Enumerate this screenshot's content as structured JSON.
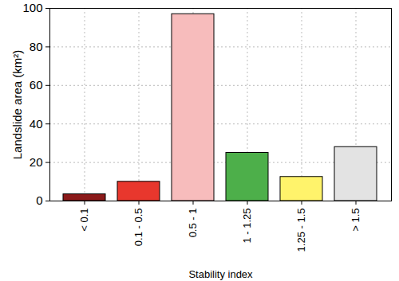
{
  "chart_data": {
    "type": "bar",
    "x_label": "Stability index",
    "y_label": "Landslide area (km²)",
    "categories": [
      "< 0.1",
      "0.1 - 0.5",
      "0.5 - 1",
      "1 - 1.25",
      "1.25 - 1.5",
      "> 1.5"
    ],
    "values": [
      3.5,
      10,
      97,
      25,
      12.5,
      28
    ],
    "colors": [
      "#8b1a1a",
      "#e8372d",
      "#f7bcbc",
      "#4daf4a",
      "#fff36b",
      "#e3e3e3"
    ],
    "ylim": [
      0,
      100
    ],
    "yticks": [
      0,
      20,
      40,
      60,
      80,
      100
    ],
    "grid": true
  }
}
